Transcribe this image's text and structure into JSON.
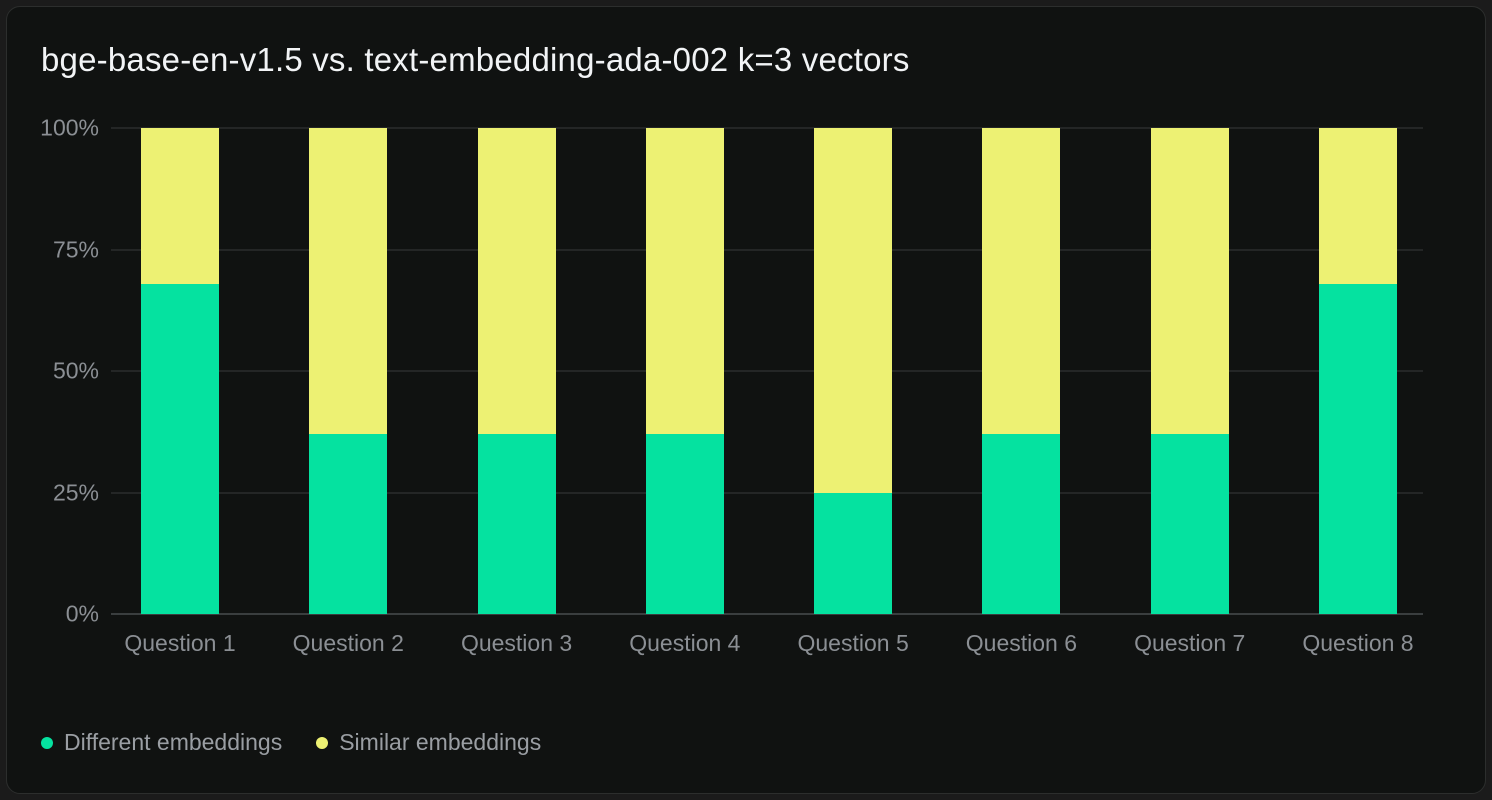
{
  "chart_data": {
    "type": "bar",
    "stacked": true,
    "orientation": "vertical",
    "title": "bge-base-en-v1.5 vs. text-embedding-ada-002 k=3 vectors",
    "categories": [
      "Question 1",
      "Question 2",
      "Question 3",
      "Question 4",
      "Question 5",
      "Question 6",
      "Question 7",
      "Question 8"
    ],
    "series": [
      {
        "name": "Different embeddings",
        "color": "#05e2a0",
        "values": [
          68,
          37,
          37,
          37,
          25,
          37,
          37,
          68
        ]
      },
      {
        "name": "Similar embeddings",
        "color": "#edf173",
        "values": [
          32,
          63,
          63,
          63,
          75,
          63,
          63,
          32
        ]
      }
    ],
    "xlabel": "",
    "ylabel": "",
    "ylim": [
      0,
      100
    ],
    "y_ticks": [
      "0%",
      "25%",
      "50%",
      "75%",
      "100%"
    ],
    "value_unit": "%",
    "grid": "horizontal",
    "legend_position": "bottom-left"
  },
  "theme": {
    "page_background": "#1b1b1b",
    "card_background": "#101211",
    "title_color": "#f2f4f6",
    "axis_label_color": "#8b8f94",
    "gridline_color": "#242626",
    "axis_line_color": "#3a3e3f"
  }
}
